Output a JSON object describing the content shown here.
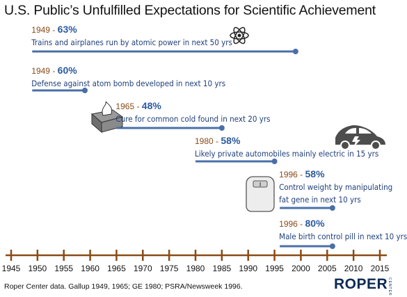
{
  "title": "U.S. Public’s Unfulfilled Expectations for Scientific Achievement",
  "source": "Roper Center data. Gallup 1949, 1965; GE 1980; PSRA/Newsweek 1996.",
  "brand": "ROPER",
  "brand_sub": "CENTER",
  "colors": {
    "year_text": "#8a4a16",
    "percent_text": "#2c5a9e",
    "description_text": "#1f3f7a",
    "bar": "#4a6fa8",
    "axis_tick": "#8a4a16"
  },
  "icons": [
    "atom-icon",
    "tissue-box-icon",
    "electric-car-icon",
    "scale-icon"
  ],
  "chart_data": {
    "type": "timeline",
    "xlim": [
      1945,
      2015
    ],
    "x_ticks": [
      1945,
      1950,
      1955,
      1960,
      1965,
      1970,
      1975,
      1980,
      1985,
      1990,
      1995,
      2000,
      2005,
      2010,
      2015
    ],
    "items": [
      {
        "year": "1949",
        "percent": "63%",
        "description": "Trains and airplanes run by atomic power in next 50 yrs",
        "start": 1949,
        "end": 1999
      },
      {
        "year": "1949",
        "percent": "60%",
        "description": "Defense against atom bomb developed in next 10 yrs",
        "start": 1949,
        "end": 1959
      },
      {
        "year": "1965",
        "percent": "48%",
        "description": "Cure for common cold found in next 20 yrs",
        "start": 1965,
        "end": 1985
      },
      {
        "year": "1980",
        "percent": "58%",
        "description": "Likely private automobiles mainly electric in 15 yrs",
        "start": 1980,
        "end": 1995
      },
      {
        "year": "1996",
        "percent": "58%",
        "description": [
          "Control weight by manipulating",
          "fat gene in next 10 yrs"
        ],
        "start": 1996,
        "end": 2006
      },
      {
        "year": "1996",
        "percent": "80%",
        "description": "Male birth control pill in next 10 yrs",
        "start": 1996,
        "end": 2006
      }
    ]
  }
}
